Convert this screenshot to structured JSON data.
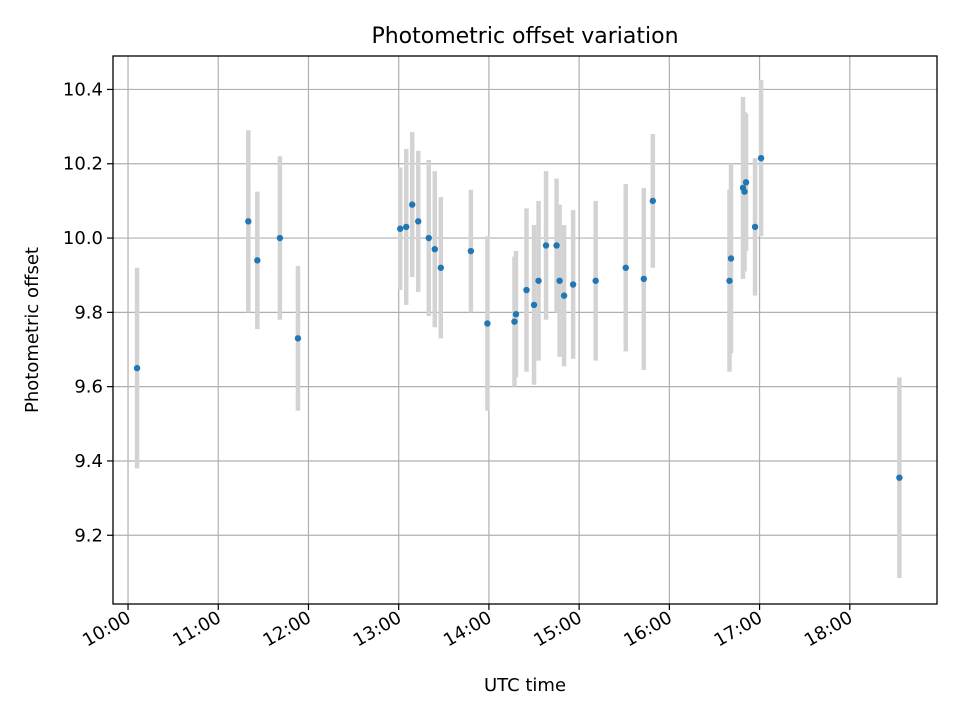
{
  "chart_data": {
    "type": "scatter",
    "title": "Photometric offset variation",
    "xlabel": "UTC time",
    "ylabel": "Photometric offset",
    "grid": true,
    "colors": {
      "points": "#1f77b4",
      "errorbars": "#d3d3d3"
    },
    "xlim": [
      "09:50",
      "18:58"
    ],
    "ylim": [
      9.015,
      10.49
    ],
    "x_ticks": [
      "10:00",
      "11:00",
      "12:00",
      "13:00",
      "14:00",
      "15:00",
      "16:00",
      "17:00",
      "18:00"
    ],
    "y_ticks": [
      "9.2",
      "9.4",
      "9.6",
      "9.8",
      "10.0",
      "10.2",
      "10.4"
    ],
    "series": [
      {
        "points": [
          {
            "x": "10:06",
            "y": 9.65,
            "err": 0.27
          },
          {
            "x": "11:20",
            "y": 10.045,
            "err": 0.245
          },
          {
            "x": "11:26",
            "y": 9.94,
            "err": 0.185
          },
          {
            "x": "11:41",
            "y": 10.0,
            "err": 0.22
          },
          {
            "x": "11:53",
            "y": 9.73,
            "err": 0.195
          },
          {
            "x": "13:01",
            "y": 10.025,
            "err": 0.165
          },
          {
            "x": "13:05",
            "y": 10.03,
            "err": 0.21
          },
          {
            "x": "13:09",
            "y": 10.09,
            "err": 0.195
          },
          {
            "x": "13:13",
            "y": 10.045,
            "err": 0.19
          },
          {
            "x": "13:20",
            "y": 10.0,
            "err": 0.21
          },
          {
            "x": "13:24",
            "y": 9.97,
            "err": 0.21
          },
          {
            "x": "13:28",
            "y": 9.92,
            "err": 0.19
          },
          {
            "x": "13:48",
            "y": 9.965,
            "err": 0.165
          },
          {
            "x": "13:59",
            "y": 9.77,
            "err": 0.235
          },
          {
            "x": "14:17",
            "y": 9.775,
            "err": 0.175
          },
          {
            "x": "14:18",
            "y": 9.795,
            "err": 0.17
          },
          {
            "x": "14:25",
            "y": 9.86,
            "err": 0.22
          },
          {
            "x": "14:30",
            "y": 9.82,
            "err": 0.215
          },
          {
            "x": "14:33",
            "y": 9.885,
            "err": 0.215
          },
          {
            "x": "14:38",
            "y": 9.98,
            "err": 0.2
          },
          {
            "x": "14:45",
            "y": 9.98,
            "err": 0.18
          },
          {
            "x": "14:47",
            "y": 9.885,
            "err": 0.205
          },
          {
            "x": "14:50",
            "y": 9.845,
            "err": 0.19
          },
          {
            "x": "14:56",
            "y": 9.875,
            "err": 0.2
          },
          {
            "x": "15:11",
            "y": 9.885,
            "err": 0.215
          },
          {
            "x": "15:31",
            "y": 9.92,
            "err": 0.225
          },
          {
            "x": "15:43",
            "y": 9.89,
            "err": 0.245
          },
          {
            "x": "15:49",
            "y": 10.1,
            "err": 0.18
          },
          {
            "x": "16:40",
            "y": 9.885,
            "err": 0.245
          },
          {
            "x": "16:41",
            "y": 9.945,
            "err": 0.255
          },
          {
            "x": "16:49",
            "y": 10.135,
            "err": 0.245
          },
          {
            "x": "16:50",
            "y": 10.125,
            "err": 0.215
          },
          {
            "x": "16:51",
            "y": 10.15,
            "err": 0.185
          },
          {
            "x": "16:57",
            "y": 10.03,
            "err": 0.185
          },
          {
            "x": "17:01",
            "y": 10.215,
            "err": 0.21
          },
          {
            "x": "18:33",
            "y": 9.355,
            "err": 0.27
          }
        ]
      }
    ]
  }
}
